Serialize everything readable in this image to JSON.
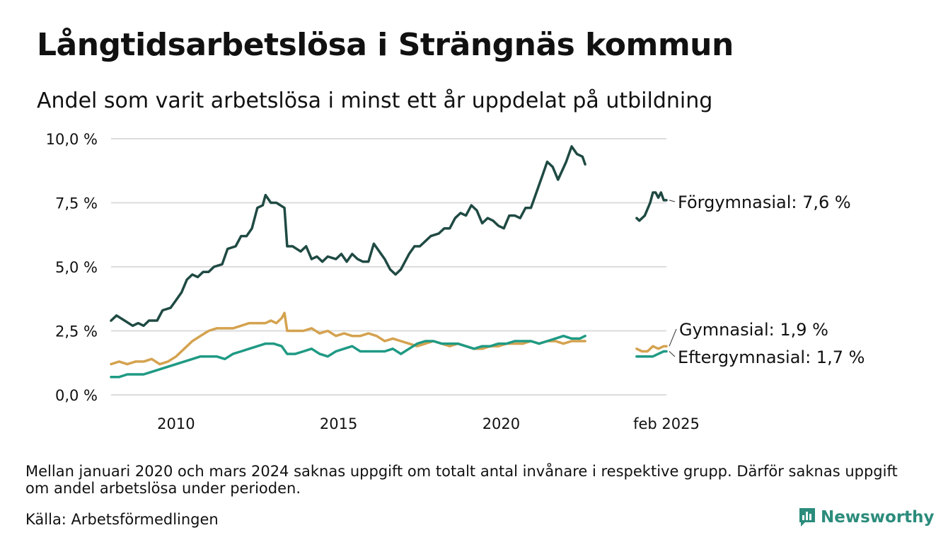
{
  "title": "Långtidsarbetslösa i Strängnäs kommun",
  "subtitle": "Andel som varit arbetslösa i minst ett år uppdelat på utbildning",
  "note": "Mellan januari 2020 och mars 2024 saknas uppgift om totalt antal invånare i respektive grupp. Därför saknas uppgift om andel arbetslösa under perioden.",
  "source": "Källa: Arbetsförmedlingen",
  "brand": "Newsworthy",
  "chart_data": {
    "type": "line",
    "title": "Långtidsarbetslösa i Strängnäs kommun",
    "xlabel": "",
    "ylabel": "",
    "ylim": [
      0,
      10
    ],
    "grid": true,
    "legend": "direct labels at line ends (right)",
    "y_ticks": [
      "0,0 %",
      "2,5 %",
      "5,0 %",
      "7,5 %",
      "10,0 %"
    ],
    "y_tick_values": [
      0,
      2.5,
      5,
      7.5,
      10
    ],
    "x_ticks": [
      "2010",
      "2015",
      "2020",
      "feb 2025"
    ],
    "x_tick_values": [
      "2010-01",
      "2015-01",
      "2020-01",
      "2025-02"
    ],
    "x_range": [
      "2008-01",
      "2025-02"
    ],
    "series": [
      {
        "name": "Förgymnasial",
        "end_label": "Förgymnasial: 7,6 %",
        "color": "#1f4a43",
        "segments": [
          [
            [
              "2008-01",
              2.9
            ],
            [
              "2008-03",
              3.1
            ],
            [
              "2008-06",
              2.9
            ],
            [
              "2008-09",
              2.7
            ],
            [
              "2008-11",
              2.8
            ],
            [
              "2009-01",
              2.7
            ],
            [
              "2009-03",
              2.9
            ],
            [
              "2009-06",
              2.9
            ],
            [
              "2009-08",
              3.3
            ],
            [
              "2009-11",
              3.4
            ],
            [
              "2010-01",
              3.7
            ],
            [
              "2010-03",
              4.0
            ],
            [
              "2010-05",
              4.5
            ],
            [
              "2010-07",
              4.7
            ],
            [
              "2010-09",
              4.6
            ],
            [
              "2010-11",
              4.8
            ],
            [
              "2011-01",
              4.8
            ],
            [
              "2011-03",
              5.0
            ],
            [
              "2011-06",
              5.1
            ],
            [
              "2011-08",
              5.7
            ],
            [
              "2011-11",
              5.8
            ],
            [
              "2012-01",
              6.2
            ],
            [
              "2012-03",
              6.2
            ],
            [
              "2012-05",
              6.5
            ],
            [
              "2012-07",
              7.3
            ],
            [
              "2012-09",
              7.4
            ],
            [
              "2012-10",
              7.8
            ],
            [
              "2012-12",
              7.5
            ],
            [
              "2013-02",
              7.5
            ],
            [
              "2013-05",
              7.3
            ],
            [
              "2013-06",
              5.8
            ],
            [
              "2013-08",
              5.8
            ],
            [
              "2013-11",
              5.6
            ],
            [
              "2014-01",
              5.8
            ],
            [
              "2014-03",
              5.3
            ],
            [
              "2014-05",
              5.4
            ],
            [
              "2014-07",
              5.2
            ],
            [
              "2014-09",
              5.4
            ],
            [
              "2014-12",
              5.3
            ],
            [
              "2015-02",
              5.5
            ],
            [
              "2015-04",
              5.2
            ],
            [
              "2015-06",
              5.5
            ],
            [
              "2015-08",
              5.3
            ],
            [
              "2015-10",
              5.2
            ],
            [
              "2015-12",
              5.2
            ],
            [
              "2016-02",
              5.9
            ],
            [
              "2016-04",
              5.6
            ],
            [
              "2016-06",
              5.3
            ],
            [
              "2016-08",
              4.9
            ],
            [
              "2016-10",
              4.7
            ],
            [
              "2016-12",
              4.9
            ],
            [
              "2017-03",
              5.5
            ],
            [
              "2017-05",
              5.8
            ],
            [
              "2017-07",
              5.8
            ],
            [
              "2017-09",
              6.0
            ],
            [
              "2017-11",
              6.2
            ],
            [
              "2018-02",
              6.3
            ],
            [
              "2018-04",
              6.5
            ],
            [
              "2018-06",
              6.5
            ],
            [
              "2018-08",
              6.9
            ],
            [
              "2018-10",
              7.1
            ],
            [
              "2018-12",
              7.0
            ],
            [
              "2019-02",
              7.4
            ],
            [
              "2019-04",
              7.2
            ],
            [
              "2019-06",
              6.7
            ],
            [
              "2019-08",
              6.9
            ],
            [
              "2019-10",
              6.8
            ],
            [
              "2019-12",
              6.6
            ],
            [
              "2020-02",
              6.5
            ],
            [
              "2020-04",
              7.0
            ],
            [
              "2020-06",
              7.0
            ],
            [
              "2020-08",
              6.9
            ],
            [
              "2020-10",
              7.3
            ],
            [
              "2020-12",
              7.3
            ],
            [
              "2021-02",
              7.9
            ],
            [
              "2021-04",
              8.5
            ],
            [
              "2021-06",
              9.1
            ],
            [
              "2021-08",
              8.9
            ],
            [
              "2021-10",
              8.4
            ],
            [
              "2022-01",
              9.1
            ],
            [
              "2022-03",
              9.7
            ],
            [
              "2022-05",
              9.4
            ],
            [
              "2022-07",
              9.3
            ],
            [
              "2022-08",
              9.0
            ]
          ],
          [
            [
              "2024-03",
              6.9
            ],
            [
              "2024-04",
              6.8
            ],
            [
              "2024-06",
              7.0
            ],
            [
              "2024-08",
              7.5
            ],
            [
              "2024-09",
              7.9
            ],
            [
              "2024-10",
              7.9
            ],
            [
              "2024-11",
              7.7
            ],
            [
              "2024-12",
              7.9
            ],
            [
              "2025-01",
              7.6
            ],
            [
              "2025-02",
              7.6
            ]
          ]
        ]
      },
      {
        "name": "Gymnasial",
        "end_label": "Gymnasial: 1,9 %",
        "color": "#d4a24f",
        "segments": [
          [
            [
              "2008-01",
              1.2
            ],
            [
              "2008-04",
              1.3
            ],
            [
              "2008-07",
              1.2
            ],
            [
              "2008-10",
              1.3
            ],
            [
              "2009-01",
              1.3
            ],
            [
              "2009-04",
              1.4
            ],
            [
              "2009-07",
              1.2
            ],
            [
              "2009-10",
              1.3
            ],
            [
              "2010-01",
              1.5
            ],
            [
              "2010-04",
              1.8
            ],
            [
              "2010-07",
              2.1
            ],
            [
              "2010-10",
              2.3
            ],
            [
              "2011-01",
              2.5
            ],
            [
              "2011-04",
              2.6
            ],
            [
              "2011-07",
              2.6
            ],
            [
              "2011-10",
              2.6
            ],
            [
              "2012-01",
              2.7
            ],
            [
              "2012-04",
              2.8
            ],
            [
              "2012-07",
              2.8
            ],
            [
              "2012-10",
              2.8
            ],
            [
              "2012-12",
              2.9
            ],
            [
              "2013-02",
              2.8
            ],
            [
              "2013-04",
              3.0
            ],
            [
              "2013-05",
              3.2
            ],
            [
              "2013-06",
              2.5
            ],
            [
              "2013-09",
              2.5
            ],
            [
              "2013-12",
              2.5
            ],
            [
              "2014-03",
              2.6
            ],
            [
              "2014-06",
              2.4
            ],
            [
              "2014-09",
              2.5
            ],
            [
              "2014-12",
              2.3
            ],
            [
              "2015-03",
              2.4
            ],
            [
              "2015-06",
              2.3
            ],
            [
              "2015-09",
              2.3
            ],
            [
              "2015-12",
              2.4
            ],
            [
              "2016-03",
              2.3
            ],
            [
              "2016-06",
              2.1
            ],
            [
              "2016-09",
              2.2
            ],
            [
              "2016-12",
              2.1
            ],
            [
              "2017-03",
              2.0
            ],
            [
              "2017-06",
              1.9
            ],
            [
              "2017-09",
              2.0
            ],
            [
              "2017-12",
              2.1
            ],
            [
              "2018-03",
              2.0
            ],
            [
              "2018-06",
              1.9
            ],
            [
              "2018-09",
              2.0
            ],
            [
              "2018-12",
              1.9
            ],
            [
              "2019-03",
              1.8
            ],
            [
              "2019-06",
              1.8
            ],
            [
              "2019-09",
              1.9
            ],
            [
              "2019-12",
              1.9
            ],
            [
              "2020-03",
              2.0
            ],
            [
              "2020-06",
              2.0
            ],
            [
              "2020-09",
              2.0
            ],
            [
              "2020-12",
              2.1
            ],
            [
              "2021-03",
              2.0
            ],
            [
              "2021-06",
              2.1
            ],
            [
              "2021-09",
              2.1
            ],
            [
              "2021-12",
              2.0
            ],
            [
              "2022-03",
              2.1
            ],
            [
              "2022-06",
              2.1
            ],
            [
              "2022-08",
              2.1
            ]
          ],
          [
            [
              "2024-03",
              1.8
            ],
            [
              "2024-05",
              1.7
            ],
            [
              "2024-07",
              1.7
            ],
            [
              "2024-09",
              1.9
            ],
            [
              "2024-11",
              1.8
            ],
            [
              "2025-01",
              1.9
            ],
            [
              "2025-02",
              1.9
            ]
          ]
        ]
      },
      {
        "name": "Eftergymnasial",
        "end_label": "Eftergymnasial: 1,7 %",
        "color": "#1f9a84",
        "segments": [
          [
            [
              "2008-01",
              0.7
            ],
            [
              "2008-04",
              0.7
            ],
            [
              "2008-07",
              0.8
            ],
            [
              "2008-10",
              0.8
            ],
            [
              "2009-01",
              0.8
            ],
            [
              "2009-04",
              0.9
            ],
            [
              "2009-07",
              1.0
            ],
            [
              "2009-10",
              1.1
            ],
            [
              "2010-01",
              1.2
            ],
            [
              "2010-04",
              1.3
            ],
            [
              "2010-07",
              1.4
            ],
            [
              "2010-10",
              1.5
            ],
            [
              "2011-01",
              1.5
            ],
            [
              "2011-04",
              1.5
            ],
            [
              "2011-07",
              1.4
            ],
            [
              "2011-10",
              1.6
            ],
            [
              "2012-01",
              1.7
            ],
            [
              "2012-04",
              1.8
            ],
            [
              "2012-07",
              1.9
            ],
            [
              "2012-10",
              2.0
            ],
            [
              "2013-01",
              2.0
            ],
            [
              "2013-04",
              1.9
            ],
            [
              "2013-06",
              1.6
            ],
            [
              "2013-09",
              1.6
            ],
            [
              "2013-12",
              1.7
            ],
            [
              "2014-03",
              1.8
            ],
            [
              "2014-06",
              1.6
            ],
            [
              "2014-09",
              1.5
            ],
            [
              "2014-12",
              1.7
            ],
            [
              "2015-03",
              1.8
            ],
            [
              "2015-06",
              1.9
            ],
            [
              "2015-09",
              1.7
            ],
            [
              "2015-12",
              1.7
            ],
            [
              "2016-03",
              1.7
            ],
            [
              "2016-06",
              1.7
            ],
            [
              "2016-09",
              1.8
            ],
            [
              "2016-12",
              1.6
            ],
            [
              "2017-03",
              1.8
            ],
            [
              "2017-06",
              2.0
            ],
            [
              "2017-09",
              2.1
            ],
            [
              "2017-12",
              2.1
            ],
            [
              "2018-03",
              2.0
            ],
            [
              "2018-06",
              2.0
            ],
            [
              "2018-09",
              2.0
            ],
            [
              "2018-12",
              1.9
            ],
            [
              "2019-03",
              1.8
            ],
            [
              "2019-06",
              1.9
            ],
            [
              "2019-09",
              1.9
            ],
            [
              "2019-12",
              2.0
            ],
            [
              "2020-03",
              2.0
            ],
            [
              "2020-06",
              2.1
            ],
            [
              "2020-09",
              2.1
            ],
            [
              "2020-12",
              2.1
            ],
            [
              "2021-03",
              2.0
            ],
            [
              "2021-06",
              2.1
            ],
            [
              "2021-09",
              2.2
            ],
            [
              "2021-12",
              2.3
            ],
            [
              "2022-03",
              2.2
            ],
            [
              "2022-06",
              2.2
            ],
            [
              "2022-08",
              2.3
            ]
          ],
          [
            [
              "2024-03",
              1.5
            ],
            [
              "2024-06",
              1.5
            ],
            [
              "2024-09",
              1.5
            ],
            [
              "2024-11",
              1.6
            ],
            [
              "2025-01",
              1.7
            ],
            [
              "2025-02",
              1.7
            ]
          ]
        ]
      }
    ]
  }
}
